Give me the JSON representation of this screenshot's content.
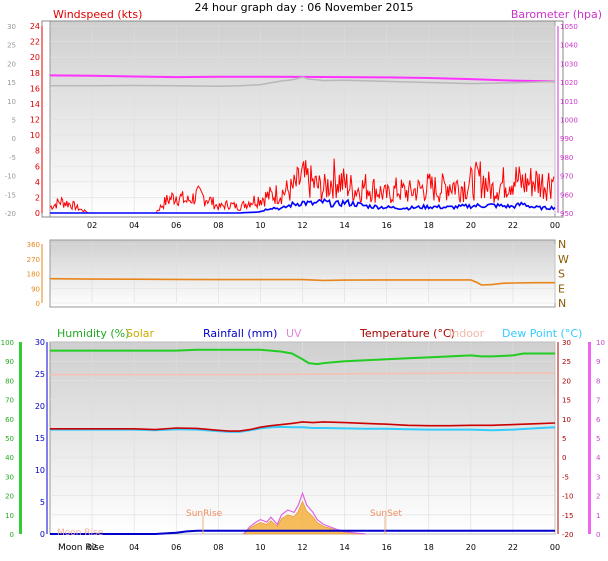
{
  "title": "24 hour graph day : 06 November 2015",
  "chart_data": [
    {
      "type": "line",
      "panel": "wind-baro",
      "left_label": "Windspeed (kts)",
      "right_label": "Barometer (hpa)",
      "x_ticks": [
        "02",
        "04",
        "06",
        "08",
        "10",
        "12",
        "14",
        "16",
        "18",
        "20",
        "22",
        "00"
      ],
      "left_ticks_inner": [
        "24",
        "22",
        "20",
        "18",
        "16",
        "14",
        "12",
        "10",
        "8",
        "6",
        "4",
        "2",
        "0"
      ],
      "left_ticks_outer": [
        "30",
        "25",
        "20",
        "15",
        "10",
        "5",
        "0",
        "-5",
        "-10",
        "-15",
        "-20"
      ],
      "right_ticks": [
        "1050",
        "1040",
        "1030",
        "1020",
        "1010",
        "1000",
        "990",
        "980",
        "970",
        "960",
        "950"
      ],
      "ylim_wind": [
        0,
        24
      ],
      "ylim_baro": [
        950,
        1050
      ],
      "series": [
        {
          "name": "Barometer",
          "color": "#ff33ff",
          "x": [
            0,
            2,
            4,
            6,
            8,
            10,
            12,
            14,
            16,
            18,
            20,
            22,
            24
          ],
          "values": [
            1023.6,
            1023.4,
            1023.0,
            1022.7,
            1022.9,
            1022.9,
            1022.8,
            1022.7,
            1022.5,
            1022.2,
            1021.6,
            1020.8,
            1020.4
          ]
        },
        {
          "name": "Temperature-ref",
          "color": "#b8b8b8",
          "x": [
            0,
            2,
            4,
            6,
            8,
            9,
            10,
            10.5,
            11,
            11.5,
            12,
            12.3,
            12.7,
            13,
            14,
            16,
            18,
            20,
            22,
            23,
            24
          ],
          "values": [
            14.0,
            14.0,
            14.1,
            14.0,
            13.9,
            14.0,
            14.3,
            14.8,
            15.3,
            15.6,
            16.3,
            15.8,
            15.6,
            15.4,
            15.5,
            15.2,
            14.9,
            14.6,
            14.8,
            15.0,
            15.2
          ]
        },
        {
          "name": "Gust",
          "color": "#ff0000",
          "x": [
            0,
            0.5,
            1,
            1.5,
            2,
            3,
            4,
            5,
            5.5,
            6,
            6.5,
            7,
            7.5,
            8,
            8.5,
            9,
            9.5,
            10,
            10.5,
            11,
            11.5,
            12,
            12.5,
            13,
            13.5,
            14,
            14.5,
            15,
            15.5,
            16,
            16.5,
            17,
            17.5,
            18,
            18.5,
            19,
            19.5,
            20,
            20.5,
            21,
            21.5,
            22,
            22.5,
            23,
            23.5,
            24
          ],
          "values": [
            1,
            2,
            1.5,
            0.5,
            0,
            0,
            0,
            0,
            2,
            3,
            2,
            3,
            2.5,
            1,
            1.5,
            1,
            2,
            2.5,
            3,
            3.5,
            4,
            6,
            5,
            4,
            6,
            5,
            4,
            4.5,
            4,
            3,
            4,
            3.5,
            4,
            4.5,
            4,
            5,
            4.5,
            5,
            6,
            4,
            5,
            6,
            5,
            5.5,
            5,
            6
          ]
        },
        {
          "name": "Windspeed",
          "color": "#0000ff",
          "x": [
            0,
            2,
            4,
            6,
            8,
            9,
            10,
            10.5,
            11,
            11.5,
            12,
            12.5,
            13,
            13.5,
            14,
            14.5,
            15,
            16,
            17,
            18,
            19,
            20,
            21,
            22,
            22.5,
            23,
            23.5,
            24
          ],
          "values": [
            0,
            0,
            0,
            0,
            0,
            0,
            0.2,
            0.8,
            0.6,
            1.2,
            1.5,
            1.3,
            1.6,
            1.2,
            1.5,
            1.3,
            1,
            0.8,
            0.7,
            0.9,
            0.8,
            1,
            1.1,
            0.9,
            1.3,
            0.8,
            0.7,
            0.8
          ]
        }
      ]
    },
    {
      "type": "line",
      "panel": "wind-direction",
      "left_ticks": [
        "360",
        "270",
        "180",
        "90",
        "0"
      ],
      "right_ticks": [
        "N",
        "W",
        "S",
        "E",
        "N"
      ],
      "ylim": [
        0,
        360
      ],
      "series": [
        {
          "name": "Wind direction",
          "color": "#e8851a",
          "x": [
            0,
            2,
            4,
            6,
            8,
            10,
            12,
            13,
            14,
            16,
            18,
            20,
            20.3,
            20.5,
            21,
            21.5,
            22,
            23,
            24
          ],
          "values": [
            148,
            146,
            145,
            144,
            143,
            143,
            143,
            138,
            140,
            141,
            141,
            141,
            125,
            110,
            112,
            120,
            122,
            124,
            124
          ]
        }
      ]
    },
    {
      "type": "line",
      "panel": "temp-humidity-rain-solar",
      "labels": {
        "humidity": "Humidity (%)",
        "solar": "Solar",
        "rainfall": "Rainfall (mm)",
        "uv": "UV",
        "temperature": "Temperature (°C)",
        "indoor": "Indoor",
        "dewpoint": "Dew Point (°C)",
        "sunrise": "SunRise",
        "sunset": "SunSet",
        "moonrise": "Moon Rise"
      },
      "x_ticks": [
        "02",
        "04",
        "06",
        "08",
        "10",
        "12",
        "14",
        "16",
        "18",
        "20",
        "22",
        "00"
      ],
      "humidity_ticks": [
        "100",
        "90",
        "80",
        "70",
        "60",
        "50",
        "40",
        "30",
        "20",
        "10",
        "0"
      ],
      "rain_ticks": [
        "30",
        "25",
        "20",
        "15",
        "10",
        "5",
        "0"
      ],
      "temp_ticks": [
        "30",
        "25",
        "20",
        "15",
        "10",
        "5",
        "0",
        "-5",
        "-10",
        "-15",
        "-20"
      ],
      "uv_ticks": [
        "10",
        "9",
        "8",
        "7",
        "6",
        "5",
        "4",
        "3",
        "2",
        "1",
        "0"
      ],
      "colors": {
        "humidity": "#22aa22",
        "solar": "#ccaa00",
        "rainfall": "#0000cc",
        "uv": "#dd66dd",
        "temperature": "#aa0000",
        "indoor": "#f0b0a0",
        "dewpoint": "#33ccff",
        "solar_fill": "#f5b040"
      },
      "series": [
        {
          "name": "Humidity",
          "color": "#33cc33",
          "x": [
            0,
            2,
            4,
            6,
            7,
            8,
            9,
            10,
            11,
            11.5,
            12,
            12.3,
            12.7,
            13,
            14,
            15,
            16,
            17,
            18,
            19,
            20,
            20.5,
            21,
            22,
            22.5,
            23,
            24
          ],
          "values": [
            95.5,
            95.5,
            95.5,
            95.5,
            96,
            96,
            96,
            96,
            95,
            94,
            91,
            89,
            88.5,
            89,
            90,
            90.5,
            91,
            91.5,
            92,
            92.5,
            93,
            92.5,
            92.5,
            93,
            94,
            94,
            94
          ]
        },
        {
          "name": "Indoor",
          "color": "#f5c0b0",
          "x": [
            0,
            4,
            8,
            12,
            16,
            20,
            24
          ],
          "values": [
            21.5,
            21.5,
            21.5,
            21.6,
            21.8,
            21.9,
            21.9
          ]
        },
        {
          "name": "Temperature",
          "color": "#cc0000",
          "x": [
            0,
            2,
            4,
            5,
            6,
            7,
            8,
            8.5,
            9,
            9.5,
            10,
            10.5,
            11,
            11.5,
            12,
            12.5,
            13,
            14,
            15,
            16,
            17,
            18,
            19,
            20,
            21,
            22,
            23,
            24
          ],
          "values": [
            7.4,
            7.4,
            7.4,
            7.2,
            7.6,
            7.5,
            7.0,
            6.8,
            6.8,
            7.2,
            7.8,
            8.2,
            8.5,
            8.8,
            9.2,
            9.0,
            9.2,
            9.0,
            8.8,
            8.6,
            8.3,
            8.2,
            8.2,
            8.3,
            8.3,
            8.5,
            8.7,
            8.9
          ]
        },
        {
          "name": "Dew Point",
          "color": "#33ccff",
          "x": [
            0,
            2,
            4,
            5,
            6,
            7,
            8,
            8.5,
            9,
            9.5,
            10,
            10.5,
            11,
            11.5,
            12,
            12.5,
            13,
            14,
            15,
            16,
            17,
            18,
            19,
            20,
            21,
            22,
            23,
            24
          ],
          "values": [
            7.2,
            7.2,
            7.2,
            7.0,
            7.3,
            7.2,
            6.8,
            6.6,
            6.6,
            7.0,
            7.5,
            7.8,
            7.9,
            7.8,
            7.8,
            7.6,
            7.6,
            7.5,
            7.4,
            7.4,
            7.3,
            7.2,
            7.2,
            7.2,
            7.0,
            7.2,
            7.5,
            7.8
          ]
        },
        {
          "name": "Rainfall",
          "color": "#0000cc",
          "x": [
            0,
            5,
            6,
            6.5,
            7,
            24
          ],
          "values": [
            0,
            0,
            0.2,
            0.4,
            0.5,
            0.5
          ]
        },
        {
          "name": "Solar",
          "color": "#f0a020",
          "x": [
            9.2,
            9.5,
            9.8,
            10.0,
            10.3,
            10.5,
            10.8,
            11.0,
            11.3,
            11.6,
            11.8,
            12.0,
            12.2,
            12.5,
            12.7,
            13.0,
            13.3,
            13.6,
            14.0,
            14.5,
            15.0
          ],
          "values": [
            0,
            1.5,
            2.5,
            3,
            2.5,
            3.5,
            2,
            4,
            5,
            4.5,
            6,
            8.5,
            6,
            4.5,
            3,
            2,
            1.5,
            1,
            0.5,
            0.2,
            0
          ]
        }
      ]
    }
  ]
}
